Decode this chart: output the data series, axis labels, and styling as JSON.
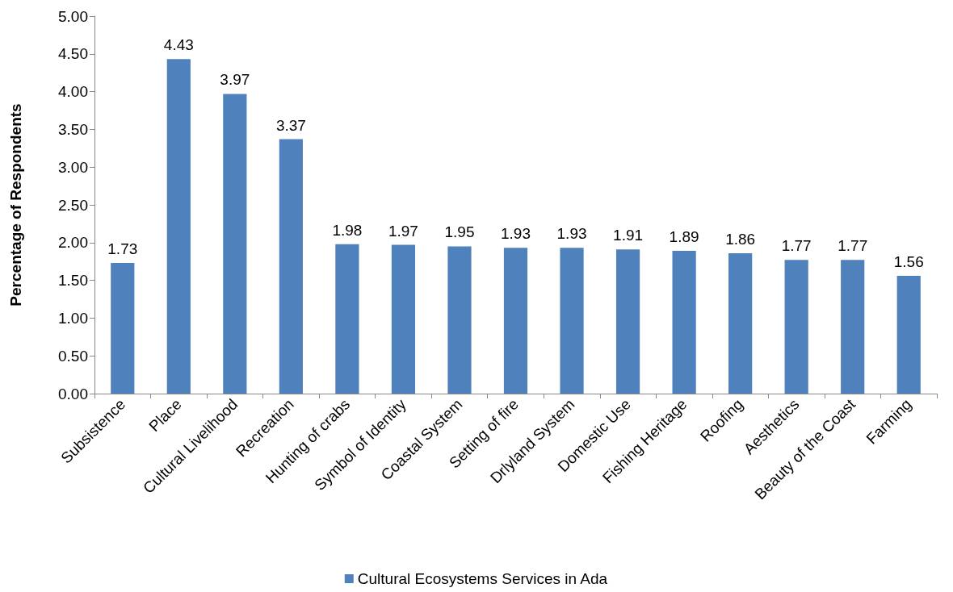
{
  "chart_data": {
    "type": "bar",
    "ylabel": "Percentage of Respondents",
    "categories": [
      "Subsistence",
      "Place",
      "Cultural Livelihood",
      "Recreation",
      "Hunting of crabs",
      "Symbol of Identity",
      "Coastal System",
      "Setting of fire",
      "Drlyland System",
      "Domestic Use",
      "Fishing Heritage",
      "Roofing",
      "Aesthetics",
      "Beauty of the Coast",
      "Farming"
    ],
    "series": [
      {
        "name": "Cultural Ecosystems Services in Ada",
        "color": "#4f81bd",
        "values": [
          1.73,
          4.43,
          3.97,
          3.37,
          1.98,
          1.97,
          1.95,
          1.93,
          1.93,
          1.91,
          1.89,
          1.86,
          1.77,
          1.77,
          1.56
        ]
      }
    ],
    "ylim": [
      0,
      5
    ],
    "yticks": [
      {
        "value": 0,
        "label": "0.00"
      },
      {
        "value": 0.5,
        "label": "0.50"
      },
      {
        "value": 1,
        "label": "1.00"
      },
      {
        "value": 1.5,
        "label": "1.50"
      },
      {
        "value": 2,
        "label": "2.00"
      },
      {
        "value": 2.5,
        "label": "2.50"
      },
      {
        "value": 3,
        "label": "3.00"
      },
      {
        "value": 3.5,
        "label": "3.50"
      },
      {
        "value": 4,
        "label": "4.00"
      },
      {
        "value": 4.5,
        "label": "4.50"
      },
      {
        "value": 5,
        "label": "5.00"
      }
    ],
    "data_labels": true,
    "grid": false,
    "legend": "bottom"
  }
}
